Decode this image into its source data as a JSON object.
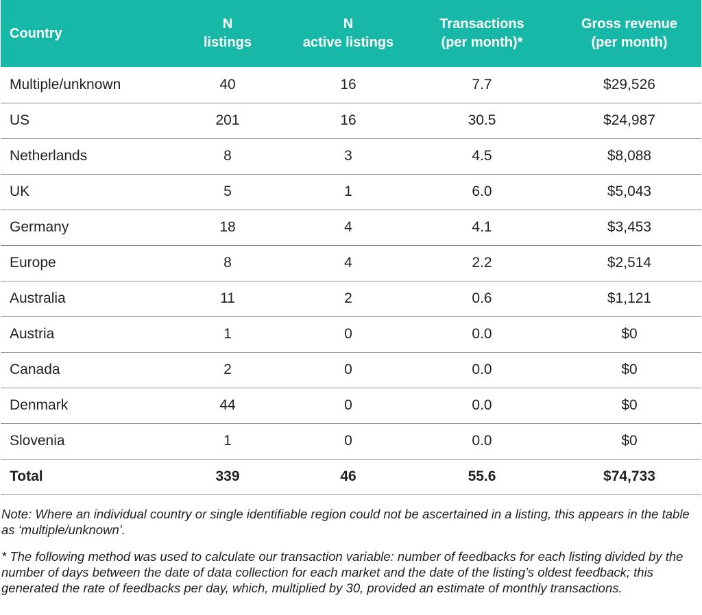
{
  "table": {
    "headers": [
      {
        "lines": [
          "Country"
        ]
      },
      {
        "lines": [
          "N",
          "listings"
        ]
      },
      {
        "lines": [
          "N",
          "active listings"
        ]
      },
      {
        "lines": [
          "Transactions",
          "(per month)*"
        ]
      },
      {
        "lines": [
          "Gross revenue",
          "(per month)"
        ]
      }
    ],
    "rows": [
      [
        "Multiple/unknown",
        "40",
        "16",
        "7.7",
        "$29,526"
      ],
      [
        "US",
        "201",
        "16",
        "30.5",
        "$24,987"
      ],
      [
        "Netherlands",
        "8",
        "3",
        "4.5",
        "$8,088"
      ],
      [
        "UK",
        "5",
        "1",
        "6.0",
        "$5,043"
      ],
      [
        "Germany",
        "18",
        "4",
        "4.1",
        "$3,453"
      ],
      [
        "Europe",
        "8",
        "4",
        "2.2",
        "$2,514"
      ],
      [
        "Australia",
        "11",
        "2",
        "0.6",
        "$1,121"
      ],
      [
        "Austria",
        "1",
        "0",
        "0.0",
        "$0"
      ],
      [
        "Canada",
        "2",
        "0",
        "0.0",
        "$0"
      ],
      [
        "Denmark",
        "44",
        "0",
        "0.0",
        "$0"
      ],
      [
        "Slovenia",
        "1",
        "0",
        "0.0",
        "$0"
      ]
    ],
    "total": [
      "Total",
      "339",
      "46",
      "55.6",
      "$74,733"
    ],
    "header_color": "#17b8a8"
  },
  "notes": {
    "note": "Note: Where an individual country or single identifiable region could not be ascertained in a listing, this appears in the table as ‘multiple/unknown’.",
    "footnote": "* The following method was used to calculate our transaction variable: number of feedbacks for each listing divided by the number of days between the date of data collection for each market and the date of the listing’s oldest feedback; this generated the rate of feedbacks per day, which, multiplied by 30, provided an estimate of monthly transactions."
  }
}
